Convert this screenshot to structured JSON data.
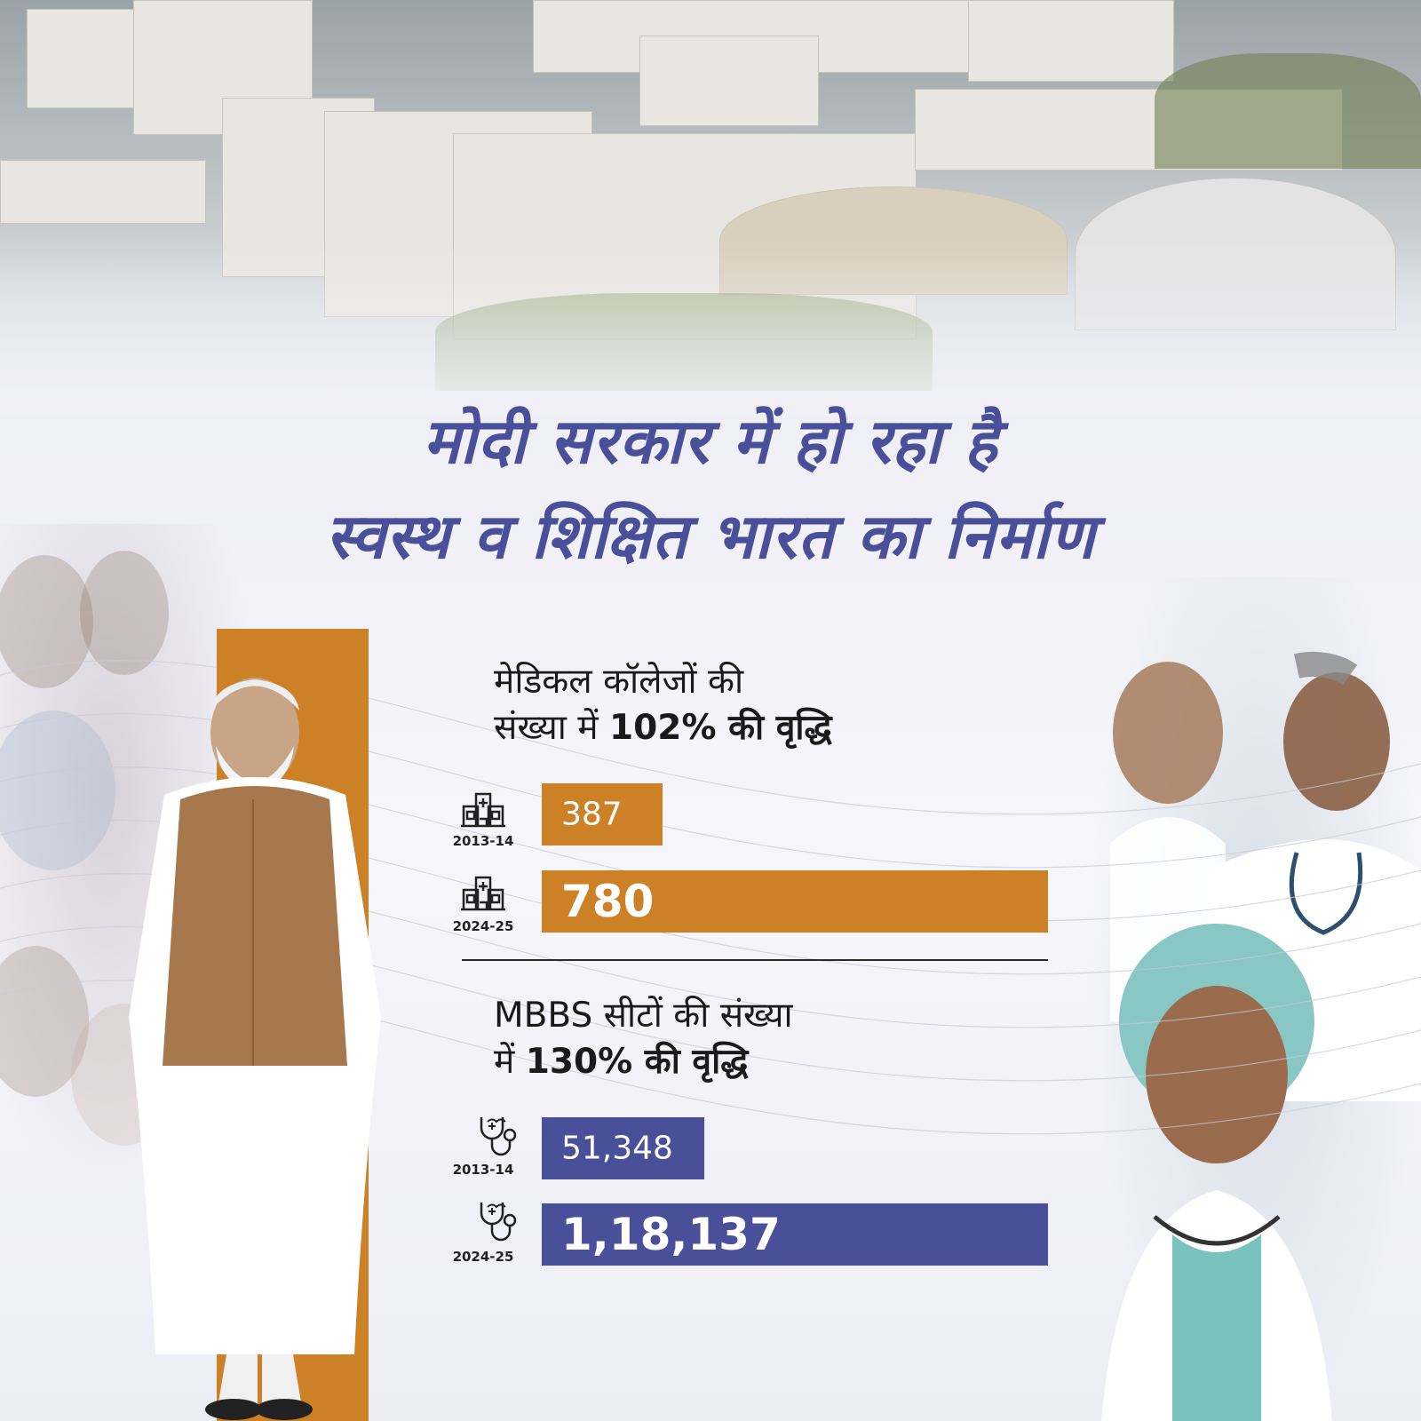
{
  "headline": {
    "line1": "मोदी सरकार में हो रहा है",
    "line2": "स्वस्थ व शिक्षित भारत का निर्माण"
  },
  "sections": [
    {
      "title_line1": "मेडिकल कॉलेजों की",
      "title_line2_prefix": "संख्या में ",
      "title_line2_emph": "102% की वृद्धि",
      "icon": "hospital-icon",
      "color": "#cd8127",
      "rows": [
        {
          "year": "2013-14",
          "label": "387"
        },
        {
          "year": "2024-25",
          "label": "780"
        }
      ]
    },
    {
      "title_line1": "MBBS सीटों की संख्या",
      "title_line2_prefix": "में ",
      "title_line2_emph": "130% की वृद्धि",
      "icon": "stethoscope-icon",
      "color": "#4a4f9a",
      "rows": [
        {
          "year": "2013-14",
          "label": "51,348"
        },
        {
          "year": "2024-25",
          "label": "1,18,137"
        }
      ]
    }
  ],
  "colors": {
    "headline": "#4a4f9a",
    "accent_orange": "#cd8127",
    "accent_purple": "#4a4f9a"
  },
  "chart_data": [
    {
      "type": "bar",
      "orientation": "horizontal",
      "title": "मेडिकल कॉलेजों की संख्या में 102% की वृद्धि",
      "categories": [
        "2013-14",
        "2024-25"
      ],
      "values": [
        387,
        780
      ],
      "data_labels": [
        "387",
        "780"
      ],
      "color": "#cd8127"
    },
    {
      "type": "bar",
      "orientation": "horizontal",
      "title": "MBBS सीटों की संख्या में 130% की वृद्धि",
      "categories": [
        "2013-14",
        "2024-25"
      ],
      "values": [
        51348,
        118137
      ],
      "data_labels": [
        "51,348",
        "1,18,137"
      ],
      "color": "#4a4f9a"
    }
  ]
}
